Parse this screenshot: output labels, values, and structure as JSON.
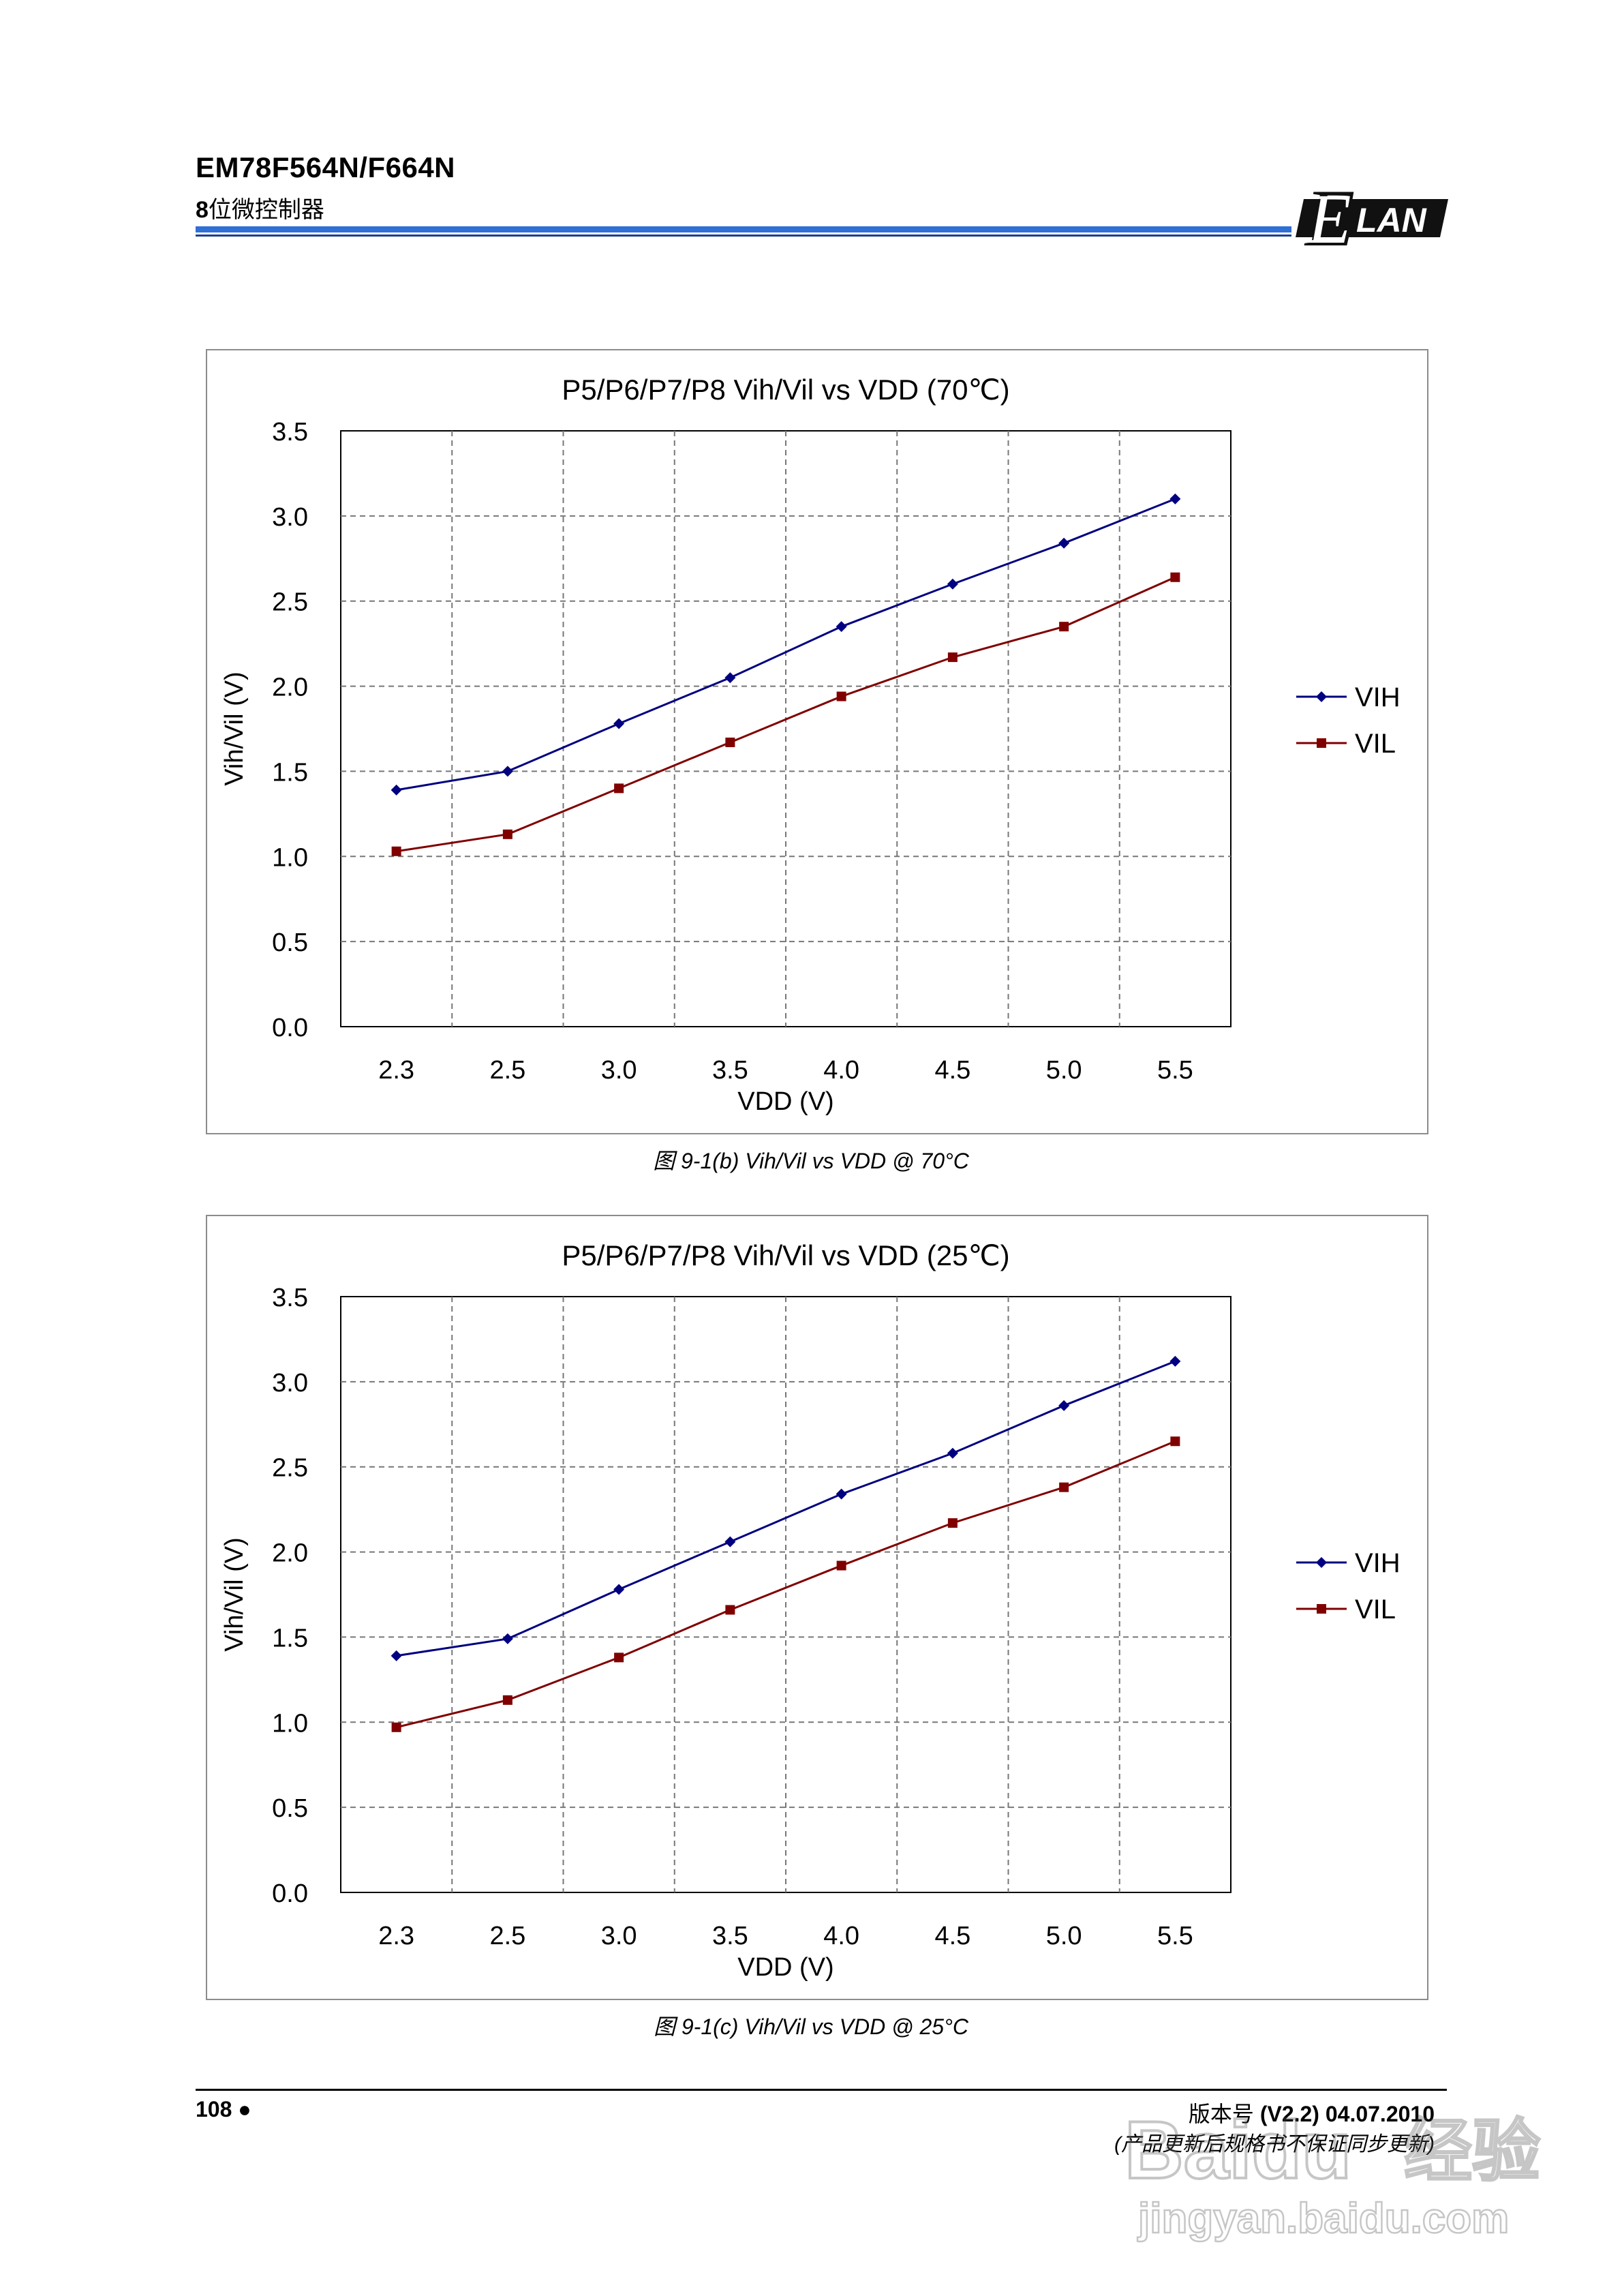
{
  "header": {
    "title": "EM78F564N/F664N",
    "subtitle_prefix": "8",
    "subtitle_rest": "位微控制器",
    "logo_text": "LAN",
    "logo_initial": "E"
  },
  "chart_data": [
    {
      "type": "line",
      "title": "P5/P6/P7/P8 Vih/Vil vs VDD (70℃)",
      "xlabel": "VDD (V)",
      "ylabel": "Vih/Vil (V)",
      "categories": [
        "2.3",
        "2.5",
        "3.0",
        "3.5",
        "4.0",
        "4.5",
        "5.0",
        "5.5"
      ],
      "ylim": [
        0,
        3.5
      ],
      "yticks": [
        "0.0",
        "0.5",
        "1.0",
        "1.5",
        "2.0",
        "2.5",
        "3.0",
        "3.5"
      ],
      "grid": true,
      "legend": "right",
      "series": [
        {
          "name": "VIH",
          "color": "#000080",
          "marker": "diamond",
          "values": [
            1.39,
            1.5,
            1.78,
            2.05,
            2.35,
            2.6,
            2.84,
            3.1
          ]
        },
        {
          "name": "VIL",
          "color": "#800000",
          "marker": "square",
          "values": [
            1.03,
            1.13,
            1.4,
            1.67,
            1.94,
            2.17,
            2.35,
            2.64
          ]
        }
      ],
      "caption": "图 9-1(b) Vih/Vil vs VDD @ 70°C"
    },
    {
      "type": "line",
      "title": "P5/P6/P7/P8 Vih/Vil vs VDD (25℃)",
      "xlabel": "VDD (V)",
      "ylabel": "Vih/Vil (V)",
      "categories": [
        "2.3",
        "2.5",
        "3.0",
        "3.5",
        "4.0",
        "4.5",
        "5.0",
        "5.5"
      ],
      "ylim": [
        0,
        3.5
      ],
      "yticks": [
        "0.0",
        "0.5",
        "1.0",
        "1.5",
        "2.0",
        "2.5",
        "3.0",
        "3.5"
      ],
      "grid": true,
      "legend": "right",
      "series": [
        {
          "name": "VIH",
          "color": "#000080",
          "marker": "diamond",
          "values": [
            1.39,
            1.49,
            1.78,
            2.06,
            2.34,
            2.58,
            2.86,
            3.12
          ]
        },
        {
          "name": "VIL",
          "color": "#800000",
          "marker": "square",
          "values": [
            0.97,
            1.13,
            1.38,
            1.66,
            1.92,
            2.17,
            2.38,
            2.65
          ]
        }
      ],
      "caption": "图 9-1(c) Vih/Vil vs VDD @ 25°C"
    }
  ],
  "footer": {
    "page_number": "108 ●",
    "version_label": "版本号",
    "version_value": " (V2.2) 04.07.2010",
    "note": "(产品更新后规格书不保证同步更新)"
  },
  "watermark": {
    "brand": "Baidu",
    "suffix": "经验",
    "url": "jingyan.baidu.com"
  }
}
